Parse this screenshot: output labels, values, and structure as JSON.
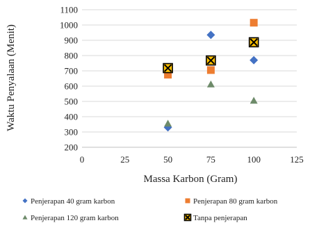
{
  "chart_data": {
    "type": "scatter",
    "title": "",
    "xlabel": "Massa Karbon (Gram)",
    "ylabel": "Waktu Penyalaan (Menit)",
    "xlim": [
      0,
      125
    ],
    "ylim": [
      200,
      1100
    ],
    "x_ticks": [
      0,
      25,
      50,
      75,
      100,
      125
    ],
    "y_ticks": [
      200,
      300,
      400,
      500,
      600,
      700,
      800,
      900,
      1000,
      1100
    ],
    "x_tick_labels": [
      "0",
      "25",
      "50",
      "75",
      "100",
      "125"
    ],
    "y_tick_labels": [
      "200",
      "300",
      "400",
      "500",
      "600",
      "700",
      "800",
      "900",
      "1000",
      "1100"
    ],
    "grid": "horizontal",
    "legend_position": "bottom",
    "series": [
      {
        "name": "Penjerapan 40 gram karbon",
        "marker": "diamond",
        "color": "#4472C4",
        "x": [
          50,
          75,
          100
        ],
        "y": [
          330,
          935,
          770
        ]
      },
      {
        "name": "Penjerapan 80 gram karbon",
        "marker": "square",
        "color": "#ED7D31",
        "x": [
          50,
          75,
          100
        ],
        "y": [
          675,
          705,
          1015
        ]
      },
      {
        "name": "Penjerapan 120 gram karbon",
        "marker": "triangle",
        "color": "#6E8B6A",
        "x": [
          50,
          75,
          100
        ],
        "y": [
          355,
          612,
          505
        ]
      },
      {
        "name": "Tanpa penjerapan",
        "marker": "x-square",
        "color": "#FFC000",
        "x": [
          50,
          75,
          100
        ],
        "y": [
          718,
          768,
          887
        ]
      }
    ]
  }
}
